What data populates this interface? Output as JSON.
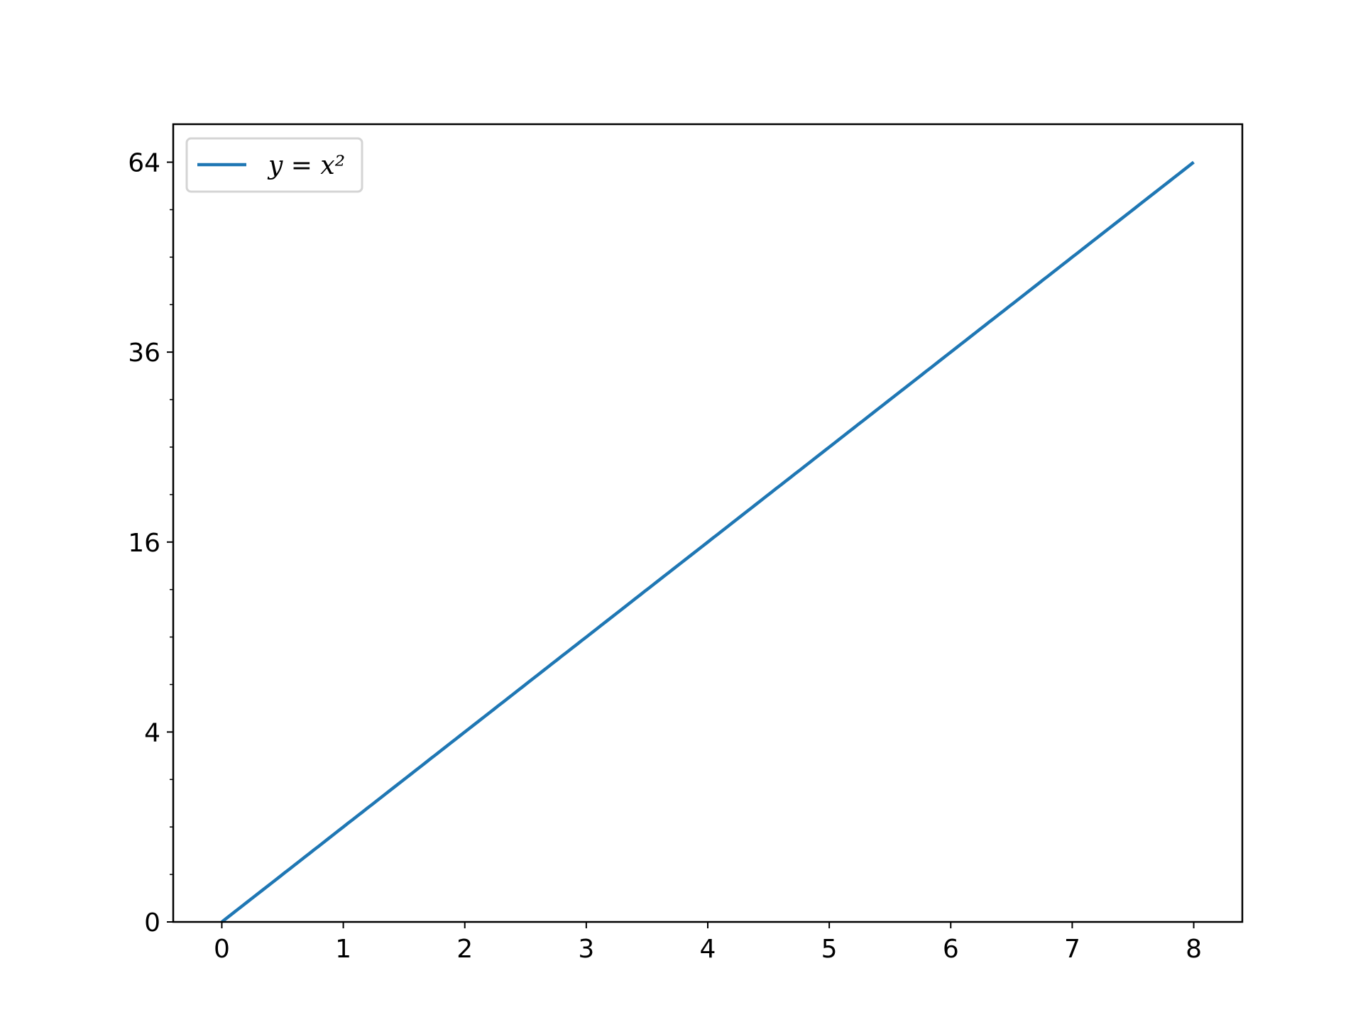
{
  "chart_data": {
    "type": "line",
    "title": "",
    "xlabel": "",
    "ylabel": "",
    "xlim": [
      -0.4,
      8.4
    ],
    "ylim": [
      0,
      70.56
    ],
    "yscale": "sqrt",
    "grid": false,
    "legend_placement": "top-left",
    "x_ticks": [
      "0",
      "1",
      "2",
      "3",
      "4",
      "5",
      "6",
      "7",
      "8"
    ],
    "y_ticks": [
      "0",
      "4",
      "16",
      "36",
      "64"
    ],
    "y_tick_values": [
      0,
      4,
      16,
      36,
      64
    ],
    "series": [
      {
        "name": "y = x²",
        "color": "#1f77b4",
        "function": "x^2",
        "x_range": [
          0,
          8
        ]
      }
    ]
  }
}
